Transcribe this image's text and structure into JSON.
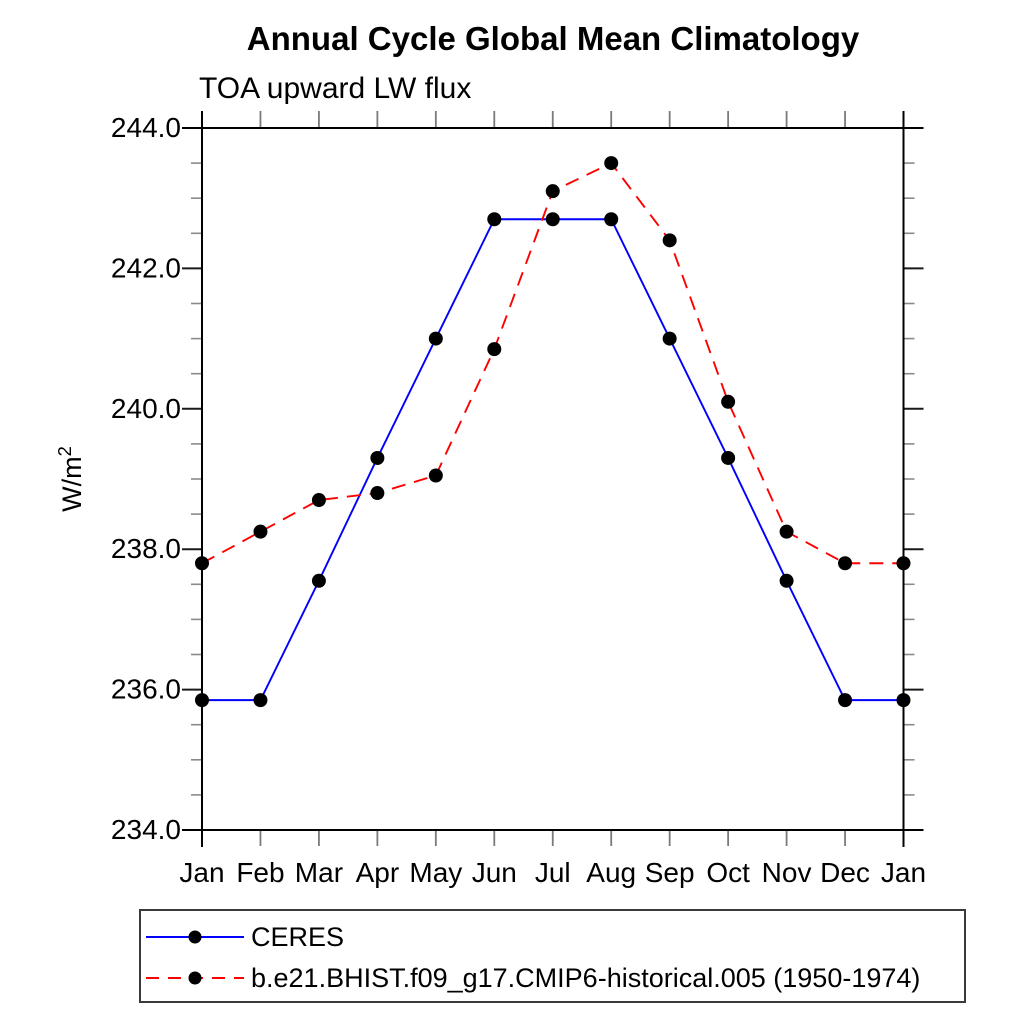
{
  "header": {
    "title": "Annual Cycle Global Mean Climatology",
    "subtitle": "TOA upward LW flux"
  },
  "y_axis": {
    "label_base": "W/m",
    "label_exp": "2"
  },
  "legend": {
    "items": [
      {
        "label": "CERES",
        "color": "#0000ff",
        "line_style": "solid",
        "marker_color": "#000000"
      },
      {
        "label": "b.e21.BHIST.f09_g17.CMIP6-historical.005 (1950-1974)",
        "color": "#ff0000",
        "line_style": "dashed",
        "marker_color": "#000000"
      }
    ]
  },
  "chart_data": {
    "type": "line",
    "title": "Annual Cycle Global Mean Climatology",
    "subtitle": "TOA upward LW flux",
    "ylabel": "W/m²",
    "xlabel": "",
    "ylim": [
      234.0,
      244.0
    ],
    "y_major_step": 2.0,
    "y_minor_step": 0.5,
    "y_tick_labels": [
      "234.0",
      "236.0",
      "238.0",
      "240.0",
      "242.0",
      "244.0"
    ],
    "categories": [
      "Jan",
      "Feb",
      "Mar",
      "Apr",
      "May",
      "Jun",
      "Jul",
      "Aug",
      "Sep",
      "Oct",
      "Nov",
      "Dec",
      "Jan"
    ],
    "grid": false,
    "legend_position": "bottom-left",
    "series": [
      {
        "name": "CERES",
        "color": "#0000ff",
        "line_style": "solid",
        "marker": "filled-circle",
        "marker_color": "#000000",
        "values": [
          235.85,
          235.85,
          237.55,
          239.3,
          241.0,
          242.7,
          242.7,
          242.7,
          241.0,
          239.3,
          237.55,
          235.85,
          235.85
        ]
      },
      {
        "name": "b.e21.BHIST.f09_g17.CMIP6-historical.005 (1950-1974)",
        "color": "#ff0000",
        "line_style": "dashed",
        "marker": "filled-circle",
        "marker_color": "#000000",
        "values": [
          237.8,
          238.25,
          238.7,
          238.8,
          239.05,
          240.85,
          243.1,
          243.5,
          242.4,
          240.1,
          238.25,
          237.8,
          237.8
        ]
      }
    ]
  }
}
